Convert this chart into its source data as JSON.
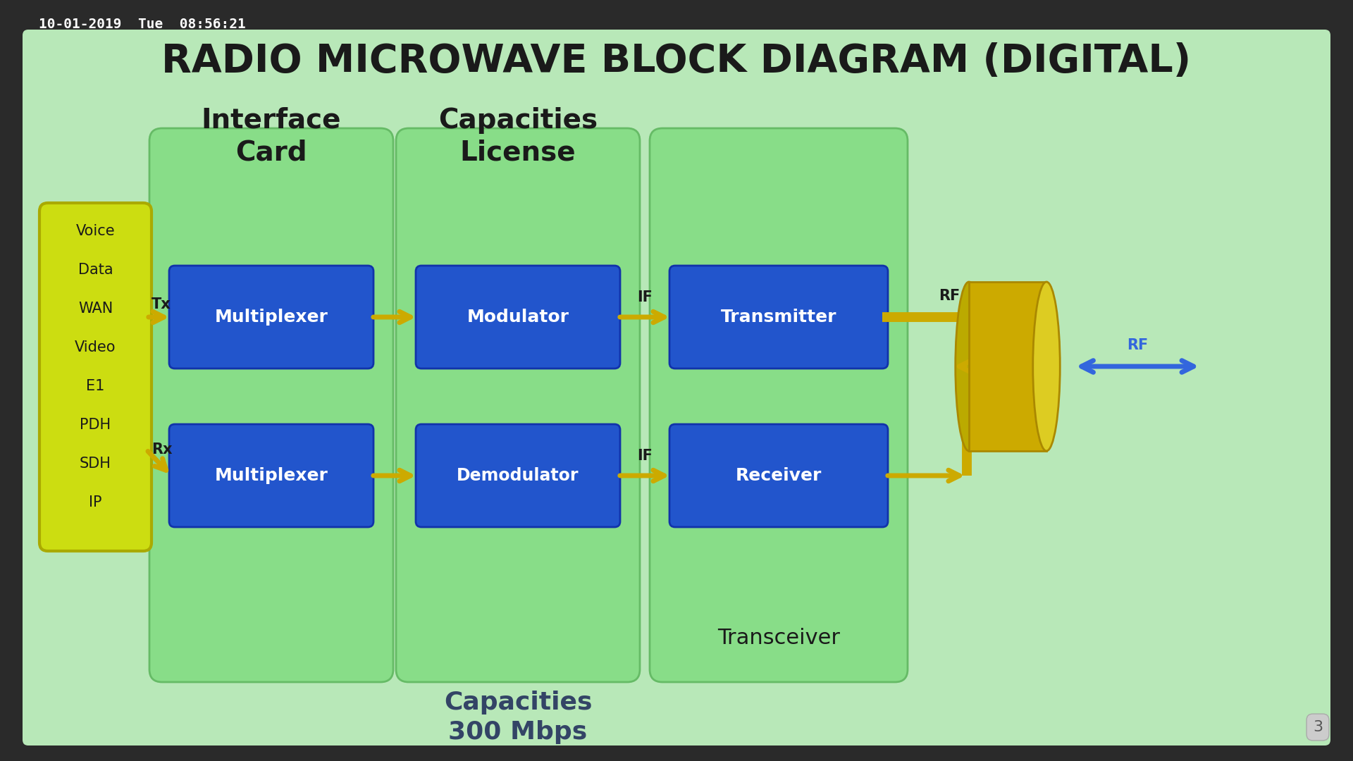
{
  "title": "RADIO MICROWAVE BLOCK DIAGRAM (DIGITAL)",
  "timestamp": "10-01-2019  Tue  08:56:21",
  "slide_bg": "#2a2a2a",
  "content_bg": "#b8e8b8",
  "group_box_color": "#88dd88",
  "group_box_edge": "#66bb66",
  "blue_box": "#2255cc",
  "blue_box_edge": "#1133aa",
  "yellow_fill": "#ccdd11",
  "yellow_edge": "#aaaa00",
  "arrow_color": "#ccaa00",
  "rf_arrow_color": "#3366dd",
  "ant_color": "#ccaa00",
  "ant_edge": "#aa8800",
  "voice_items": [
    "Voice",
    "Data",
    "WAN",
    "Video",
    "E1",
    "PDH",
    "SDH",
    "IP"
  ],
  "page_num": "3"
}
